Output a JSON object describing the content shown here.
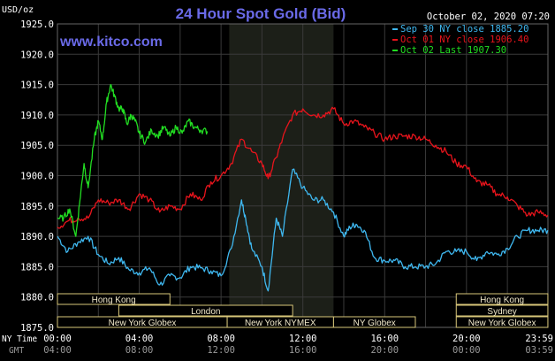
{
  "chart_data": {
    "type": "line",
    "title": "24 Hour Spot Gold (Bid)",
    "watermark": "www.kitco.com",
    "y_unit": "USD/oz",
    "date": "October 02, 2020 07:20",
    "ylim": [
      1875.0,
      1925.0
    ],
    "yticks": [
      "1925.0",
      "1920.0",
      "1915.0",
      "1910.0",
      "1905.0",
      "1900.0",
      "1895.0",
      "1890.0",
      "1885.0",
      "1880.0",
      "1875.0"
    ],
    "x_row1_label": "NY Time",
    "x_row2_label": "GMT",
    "xticks_ny": [
      "00:00",
      "04:00",
      "08:00",
      "12:00",
      "16:00",
      "20:00",
      "23:59"
    ],
    "xticks_gmt": [
      "04:00",
      "08:00",
      "12:00",
      "16:00",
      "20:00",
      "00:00",
      "03:59"
    ],
    "x_hours_ny": [
      0,
      4,
      8,
      12,
      16,
      20,
      23.983
    ],
    "grid": true,
    "legend_placement": "top-right",
    "highlight_band_hours": [
      8.4,
      13.5
    ],
    "series": [
      {
        "name": "Sep 30 NY close 1885.20",
        "color": "#3fb8f0",
        "x": [
          0,
          0.5,
          1,
          1.5,
          2,
          2.5,
          3,
          3.5,
          4,
          4.5,
          5,
          5.5,
          6,
          6.5,
          7,
          7.5,
          8,
          8.5,
          9,
          9.2,
          9.5,
          10,
          10.3,
          10.7,
          11,
          11.5,
          12,
          12.5,
          13,
          13.5,
          14,
          14.3,
          14.6,
          15,
          15.5,
          16,
          16.5,
          17,
          17.5,
          18,
          18.5,
          19,
          19.5,
          20,
          20.5,
          21,
          21.5,
          22,
          22.5,
          23,
          23.5,
          23.98
        ],
        "y": [
          1890,
          1887.5,
          1889,
          1890,
          1887,
          1885.5,
          1886.5,
          1884.5,
          1884,
          1884.8,
          1882,
          1883.5,
          1883.2,
          1885,
          1884.8,
          1884.3,
          1883.5,
          1888,
          1896,
          1893,
          1888,
          1885,
          1881,
          1893,
          1890,
          1901,
          1898,
          1896,
          1896,
          1894,
          1890,
          1891.5,
          1892,
          1891,
          1886.5,
          1886,
          1886,
          1885,
          1885,
          1885,
          1885.5,
          1887.5,
          1887.5,
          1887.5,
          1886,
          1887.5,
          1887,
          1888,
          1890,
          1891,
          1891,
          1891
        ],
        "values_start": 1890,
        "values_end": 1891
      },
      {
        "name": "Oct 01 NY close 1906.40",
        "color": "#e8141c",
        "x": [
          0,
          0.5,
          1,
          1.5,
          2,
          2.5,
          3,
          3.5,
          4,
          4.5,
          5,
          5.5,
          6,
          6.5,
          7,
          7.5,
          8,
          8.5,
          9,
          9.5,
          10,
          10.3,
          10.7,
          11,
          11.5,
          12,
          12.5,
          13,
          13.5,
          14,
          14.5,
          15,
          15.5,
          16,
          16.5,
          17,
          17.5,
          18,
          18.5,
          19,
          19.5,
          20,
          20.5,
          21,
          21.5,
          22,
          22.5,
          23,
          23.5,
          23.98
        ],
        "y": [
          1891.5,
          1892.5,
          1893,
          1893,
          1896,
          1895.5,
          1896,
          1894.5,
          1897,
          1896,
          1894,
          1895,
          1894.5,
          1897,
          1896,
          1899,
          1900,
          1902,
          1906,
          1904,
          1902,
          1899.5,
          1903,
          1906,
          1910,
          1911,
          1910,
          1910,
          1911,
          1908.5,
          1909,
          1908,
          1907,
          1906,
          1906.5,
          1906.5,
          1906.5,
          1906,
          1905,
          1904,
          1902,
          1901.5,
          1899,
          1898.5,
          1897,
          1896.5,
          1895,
          1893.5,
          1894,
          1893.5
        ],
        "values_start": 1891.5,
        "values_end": 1893.5
      },
      {
        "name": "Oct 02 Last 1907.30",
        "color": "#22dd22",
        "x": [
          0,
          0.3,
          0.6,
          0.9,
          1.1,
          1.3,
          1.5,
          1.8,
          2,
          2.2,
          2.4,
          2.6,
          2.8,
          3,
          3.2,
          3.4,
          3.6,
          3.8,
          4,
          4.3,
          4.6,
          4.9,
          5.2,
          5.5,
          5.8,
          6.1,
          6.4,
          6.7,
          7,
          7.33
        ],
        "y": [
          1893,
          1893,
          1894.5,
          1890,
          1896,
          1902,
          1898,
          1906,
          1909,
          1906,
          1912,
          1915,
          1913,
          1911,
          1911,
          1908.5,
          1910,
          1909,
          1907,
          1905.5,
          1907.5,
          1906.5,
          1908,
          1906.5,
          1908,
          1907,
          1909,
          1908,
          1907.5,
          1907.3
        ],
        "values_start": 1893,
        "values_end": 1907.3
      }
    ],
    "sessions": [
      {
        "name": "Hong Kong",
        "row": 0,
        "start": 0,
        "end": 5.5
      },
      {
        "name": "London",
        "row": 1,
        "start": 3,
        "end": 11.5
      },
      {
        "name": "New York Globex",
        "row": 2,
        "start": 0,
        "end": 8.3
      },
      {
        "name": "New York NYMEX",
        "row": 2,
        "start": 8.3,
        "end": 13.5
      },
      {
        "name": "NY Globex",
        "row": 2,
        "start": 13.5,
        "end": 17.5
      },
      {
        "name": "Hong Kong",
        "row": 0,
        "start": 19.5,
        "end": 23.98
      },
      {
        "name": "Sydney",
        "row": 1,
        "start": 19.5,
        "end": 23.98
      },
      {
        "name": "New York Globex",
        "row": 2,
        "start": 19.5,
        "end": 23.98
      }
    ]
  }
}
